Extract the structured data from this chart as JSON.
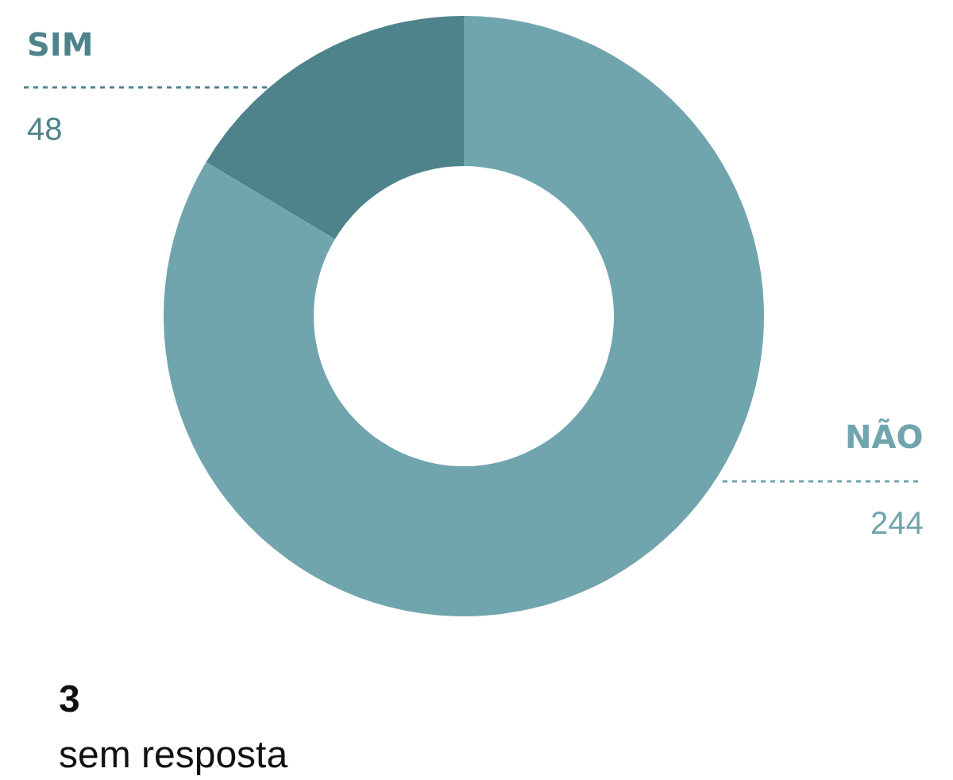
{
  "chart_data": {
    "type": "donut",
    "categories": [
      "SIM",
      "NÃO"
    ],
    "values": [
      48,
      244
    ],
    "colors": [
      "#4e838b",
      "#70a5ad"
    ],
    "data_labels": true,
    "legend": false,
    "annotations": [
      "3",
      "sem resposta"
    ]
  }
}
